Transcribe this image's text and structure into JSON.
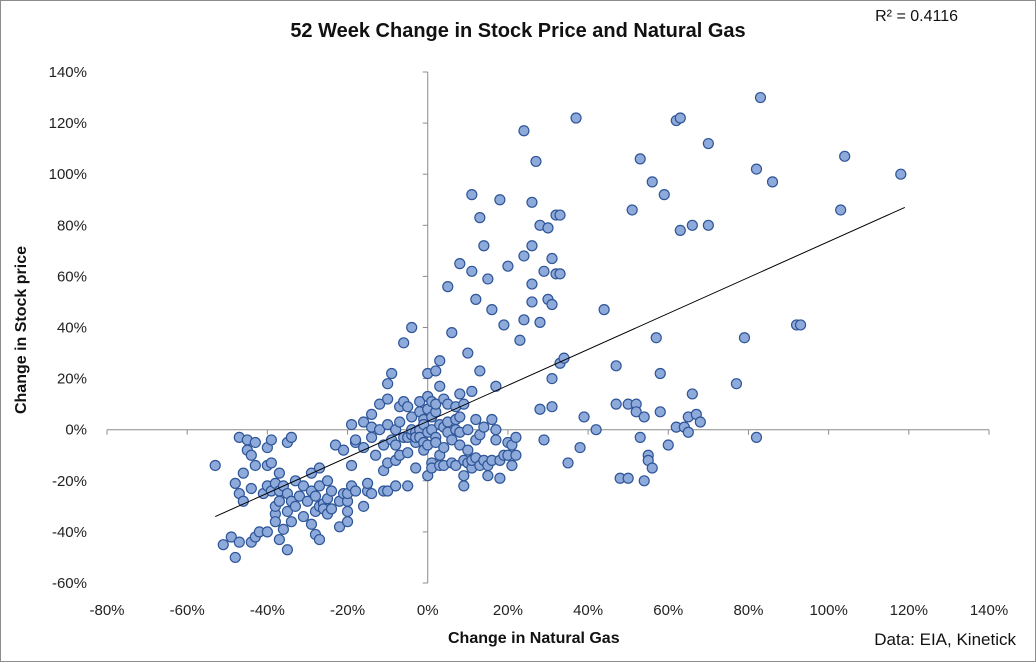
{
  "chart_data": {
    "type": "scatter",
    "title": "52 Week Change in Stock Price and Natural Gas",
    "xlabel": "Change in Natural Gas",
    "ylabel": "Change in Stock price",
    "annotation": "R² = 0.4116",
    "source": "Data: EIA, Kinetick",
    "xlim": [
      -80,
      140
    ],
    "ylim": [
      -60,
      140
    ],
    "x_ticks": [
      "-80%",
      "-60%",
      "-40%",
      "-20%",
      "0%",
      "20%",
      "40%",
      "60%",
      "80%",
      "100%",
      "120%",
      "140%"
    ],
    "y_ticks": [
      "140%",
      "120%",
      "100%",
      "80%",
      "60%",
      "40%",
      "20%",
      "0%",
      "-20%",
      "-40%",
      "-60%"
    ],
    "grid": false,
    "legend": "none",
    "marker_color": "#8EAADB",
    "marker_edge": "#2E5597",
    "trendline": {
      "from": [
        -53,
        -34
      ],
      "to": [
        119,
        87
      ]
    },
    "series": [
      {
        "points": [
          [
            -53,
            -14
          ],
          [
            -51,
            -45
          ],
          [
            -49,
            -42
          ],
          [
            -48,
            -50
          ],
          [
            -48,
            -21
          ],
          [
            -47,
            -3
          ],
          [
            -47,
            -25
          ],
          [
            -47,
            -44
          ],
          [
            -46,
            -17
          ],
          [
            -46,
            -28
          ],
          [
            -45,
            -8
          ],
          [
            -45,
            -4
          ],
          [
            -44,
            -44
          ],
          [
            -44,
            -23
          ],
          [
            -44,
            -10
          ],
          [
            -43,
            -42
          ],
          [
            -43,
            -14
          ],
          [
            -43,
            -5
          ],
          [
            -42,
            -40
          ],
          [
            -41,
            -25
          ],
          [
            -40,
            -7
          ],
          [
            -40,
            -14
          ],
          [
            -40,
            -22
          ],
          [
            -40,
            -40
          ],
          [
            -39,
            -4
          ],
          [
            -39,
            -13
          ],
          [
            -39,
            -24
          ],
          [
            -38,
            -21
          ],
          [
            -38,
            -33
          ],
          [
            -38,
            -30
          ],
          [
            -38,
            -36
          ],
          [
            -37,
            -43
          ],
          [
            -37,
            -24
          ],
          [
            -37,
            -28
          ],
          [
            -37,
            -17
          ],
          [
            -36,
            -22
          ],
          [
            -36,
            -39
          ],
          [
            -35,
            -25
          ],
          [
            -35,
            -5
          ],
          [
            -35,
            -32
          ],
          [
            -35,
            -47
          ],
          [
            -34,
            -3
          ],
          [
            -34,
            -36
          ],
          [
            -34,
            -28
          ],
          [
            -33,
            -30
          ],
          [
            -33,
            -20
          ],
          [
            -32,
            -26
          ],
          [
            -31,
            -22
          ],
          [
            -31,
            -34
          ],
          [
            -30,
            -28
          ],
          [
            -29,
            -17
          ],
          [
            -29,
            -24
          ],
          [
            -29,
            -37
          ],
          [
            -28,
            -32
          ],
          [
            -28,
            -41
          ],
          [
            -28,
            -26
          ],
          [
            -27,
            -43
          ],
          [
            -27,
            -30
          ],
          [
            -27,
            -22
          ],
          [
            -27,
            -15
          ],
          [
            -26,
            -29
          ],
          [
            -26,
            -31
          ],
          [
            -25,
            -27
          ],
          [
            -25,
            -20
          ],
          [
            -25,
            -33
          ],
          [
            -24,
            -31
          ],
          [
            -24,
            -24
          ],
          [
            -23,
            -6
          ],
          [
            -22,
            -28
          ],
          [
            -22,
            -38
          ],
          [
            -21,
            -25
          ],
          [
            -20,
            -32
          ],
          [
            -20,
            -36
          ],
          [
            -20,
            -28
          ],
          [
            -20,
            -25
          ],
          [
            -19,
            -14
          ],
          [
            -19,
            -22
          ],
          [
            -19,
            2
          ],
          [
            -18,
            -5
          ],
          [
            -18,
            -24
          ],
          [
            -16,
            -30
          ],
          [
            -16,
            -7
          ],
          [
            -16,
            3
          ],
          [
            -15,
            -24
          ],
          [
            -15,
            -21
          ],
          [
            -14,
            -25
          ],
          [
            -14,
            -3
          ],
          [
            -14,
            1
          ],
          [
            -14,
            6
          ],
          [
            -13,
            -10
          ],
          [
            -12,
            0
          ],
          [
            -12,
            10
          ],
          [
            -11,
            -6
          ],
          [
            -11,
            -16
          ],
          [
            -11,
            -24
          ],
          [
            -10,
            -13
          ],
          [
            -10,
            -24
          ],
          [
            -10,
            2
          ],
          [
            -10,
            12
          ],
          [
            -10,
            18
          ],
          [
            -9,
            22
          ],
          [
            -9,
            -4
          ],
          [
            -8,
            0
          ],
          [
            -8,
            -12
          ],
          [
            -8,
            -6
          ],
          [
            -8,
            -22
          ],
          [
            -7,
            -10
          ],
          [
            -7,
            3
          ],
          [
            -7,
            9
          ],
          [
            -6,
            -3
          ],
          [
            -6,
            11
          ],
          [
            -6,
            34
          ],
          [
            -5,
            -3
          ],
          [
            -5,
            -9
          ],
          [
            -5,
            -22
          ],
          [
            -5,
            9
          ],
          [
            -4,
            40
          ],
          [
            -4,
            -2
          ],
          [
            -4,
            5
          ],
          [
            -4,
            0
          ],
          [
            -3,
            -15
          ],
          [
            -3,
            -5
          ],
          [
            -3,
            -1
          ],
          [
            -3,
            -3
          ],
          [
            -2,
            0
          ],
          [
            -2,
            7
          ],
          [
            -2,
            11
          ],
          [
            -2,
            -3
          ],
          [
            -1,
            4
          ],
          [
            -1,
            -5
          ],
          [
            -1,
            -8
          ],
          [
            -1,
            2
          ],
          [
            0,
            -6
          ],
          [
            0,
            -1
          ],
          [
            0,
            8
          ],
          [
            0,
            13
          ],
          [
            0,
            22
          ],
          [
            0,
            -18
          ],
          [
            1,
            -13
          ],
          [
            1,
            0
          ],
          [
            1,
            5
          ],
          [
            1,
            11
          ],
          [
            1,
            -15
          ],
          [
            2,
            -3
          ],
          [
            2,
            7
          ],
          [
            2,
            10
          ],
          [
            2,
            23
          ],
          [
            2,
            -5
          ],
          [
            3,
            2
          ],
          [
            3,
            -10
          ],
          [
            3,
            17
          ],
          [
            3,
            27
          ],
          [
            3,
            -14
          ],
          [
            4,
            1
          ],
          [
            4,
            -7
          ],
          [
            4,
            12
          ],
          [
            4,
            -14
          ],
          [
            5,
            -1
          ],
          [
            5,
            3
          ],
          [
            5,
            10
          ],
          [
            5,
            56
          ],
          [
            6,
            -13
          ],
          [
            6,
            38
          ],
          [
            6,
            -4
          ],
          [
            7,
            0
          ],
          [
            7,
            4
          ],
          [
            7,
            9
          ],
          [
            7,
            -14
          ],
          [
            8,
            -1
          ],
          [
            8,
            -6
          ],
          [
            8,
            5
          ],
          [
            8,
            14
          ],
          [
            8,
            65
          ],
          [
            9,
            -18
          ],
          [
            9,
            -22
          ],
          [
            9,
            -12
          ],
          [
            9,
            10
          ],
          [
            10,
            30
          ],
          [
            10,
            0
          ],
          [
            10,
            -8
          ],
          [
            10,
            -13
          ],
          [
            11,
            92
          ],
          [
            11,
            62
          ],
          [
            11,
            -15
          ],
          [
            11,
            -12
          ],
          [
            11,
            15
          ],
          [
            12,
            51
          ],
          [
            12,
            4
          ],
          [
            12,
            -11
          ],
          [
            12,
            -4
          ],
          [
            13,
            83
          ],
          [
            13,
            -14
          ],
          [
            13,
            23
          ],
          [
            13,
            -2
          ],
          [
            14,
            72
          ],
          [
            14,
            -12
          ],
          [
            14,
            1
          ],
          [
            15,
            59
          ],
          [
            15,
            -18
          ],
          [
            15,
            -14
          ],
          [
            16,
            47
          ],
          [
            16,
            4
          ],
          [
            16,
            -12
          ],
          [
            17,
            17
          ],
          [
            17,
            -4
          ],
          [
            17,
            0
          ],
          [
            18,
            90
          ],
          [
            18,
            -19
          ],
          [
            18,
            -12
          ],
          [
            19,
            41
          ],
          [
            19,
            -10
          ],
          [
            20,
            64
          ],
          [
            20,
            -5
          ],
          [
            20,
            -10
          ],
          [
            21,
            -14
          ],
          [
            21,
            -6
          ],
          [
            22,
            -3
          ],
          [
            22,
            -10
          ],
          [
            23,
            35
          ],
          [
            24,
            117
          ],
          [
            24,
            43
          ],
          [
            24,
            68
          ],
          [
            26,
            89
          ],
          [
            26,
            72
          ],
          [
            26,
            50
          ],
          [
            26,
            57
          ],
          [
            27,
            105
          ],
          [
            28,
            80
          ],
          [
            28,
            42
          ],
          [
            28,
            8
          ],
          [
            29,
            -4
          ],
          [
            29,
            62
          ],
          [
            30,
            79
          ],
          [
            30,
            51
          ],
          [
            31,
            67
          ],
          [
            31,
            9
          ],
          [
            31,
            20
          ],
          [
            31,
            49
          ],
          [
            32,
            84
          ],
          [
            32,
            61
          ],
          [
            33,
            26
          ],
          [
            33,
            61
          ],
          [
            33,
            84
          ],
          [
            34,
            28
          ],
          [
            35,
            -13
          ],
          [
            37,
            122
          ],
          [
            38,
            -7
          ],
          [
            39,
            5
          ],
          [
            42,
            0
          ],
          [
            44,
            47
          ],
          [
            47,
            25
          ],
          [
            47,
            10
          ],
          [
            48,
            -19
          ],
          [
            50,
            -19
          ],
          [
            50,
            10
          ],
          [
            51,
            86
          ],
          [
            52,
            10
          ],
          [
            52,
            7
          ],
          [
            53,
            106
          ],
          [
            53,
            -3
          ],
          [
            54,
            -20
          ],
          [
            54,
            5
          ],
          [
            55,
            -10
          ],
          [
            55,
            -12
          ],
          [
            56,
            97
          ],
          [
            56,
            -15
          ],
          [
            57,
            36
          ],
          [
            58,
            22
          ],
          [
            58,
            7
          ],
          [
            59,
            92
          ],
          [
            60,
            -6
          ],
          [
            62,
            1
          ],
          [
            62,
            121
          ],
          [
            63,
            122
          ],
          [
            63,
            78
          ],
          [
            64,
            1
          ],
          [
            65,
            5
          ],
          [
            65,
            -1
          ],
          [
            66,
            80
          ],
          [
            66,
            14
          ],
          [
            67,
            6
          ],
          [
            68,
            3
          ],
          [
            70,
            112
          ],
          [
            70,
            80
          ],
          [
            77,
            18
          ],
          [
            79,
            36
          ],
          [
            82,
            -3
          ],
          [
            82,
            102
          ],
          [
            86,
            97
          ],
          [
            92,
            41
          ],
          [
            103,
            86
          ],
          [
            104,
            107
          ],
          [
            118,
            100
          ],
          [
            83,
            130
          ],
          [
            93,
            41
          ],
          [
            -18,
            -4
          ],
          [
            -21,
            -8
          ]
        ]
      }
    ]
  }
}
